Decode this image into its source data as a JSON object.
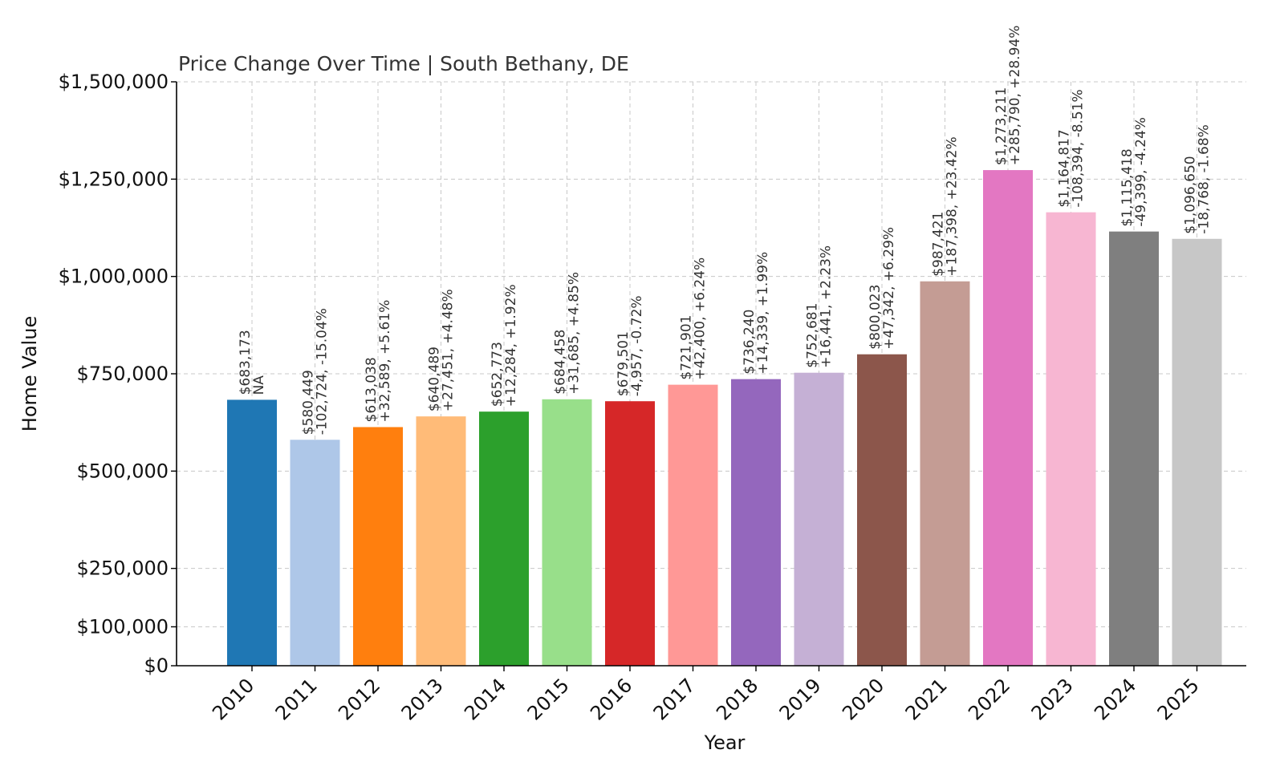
{
  "chart_data": {
    "type": "bar",
    "title": "Price Change Over Time | South Bethany, DE",
    "xlabel": "Year",
    "ylabel": "Home Value",
    "ylim": [
      0,
      1500000
    ],
    "yticks": [
      0,
      100000,
      250000,
      500000,
      750000,
      1000000,
      1250000,
      1500000
    ],
    "ytick_labels": [
      "$0",
      "$100,000",
      "$250,000",
      "$500,000",
      "$750,000",
      "$1,000,000",
      "$1,250,000",
      "$1,500,000"
    ],
    "grid": true,
    "categories": [
      "2010",
      "2011",
      "2012",
      "2013",
      "2014",
      "2015",
      "2016",
      "2017",
      "2018",
      "2019",
      "2020",
      "2021",
      "2022",
      "2023",
      "2024",
      "2025"
    ],
    "values": [
      683173,
      580449,
      613038,
      640489,
      652773,
      684458,
      679501,
      721901,
      736240,
      752681,
      800023,
      987421,
      1273211,
      1164817,
      1115418,
      1096650
    ],
    "labels": [
      [
        "$683,173",
        "NA"
      ],
      [
        "$580,449",
        "-102,724, -15.04%"
      ],
      [
        "$613,038",
        "+32,589, +5.61%"
      ],
      [
        "$640,489",
        "+27,451, +4.48%"
      ],
      [
        "$652,773",
        "+12,284, +1.92%"
      ],
      [
        "$684,458",
        "+31,685, +4.85%"
      ],
      [
        "$679,501",
        "-4,957, -0.72%"
      ],
      [
        "$721,901",
        "+42,400, +6.24%"
      ],
      [
        "$736,240",
        "+14,339, +1.99%"
      ],
      [
        "$752,681",
        "+16,441, +2.23%"
      ],
      [
        "$800,023",
        "+47,342, +6.29%"
      ],
      [
        "$987,421",
        "+187,398, +23.42%"
      ],
      [
        "$1,273,211",
        "+285,790, +28.94%"
      ],
      [
        "$1,164,817",
        "-108,394, -8.51%"
      ],
      [
        "$1,115,418",
        "-49,399, -4.24%"
      ],
      [
        "$1,096,650",
        "-18,768, -1.68%"
      ]
    ],
    "colors": [
      "#1f77b4",
      "#aec7e8",
      "#ff7f0e",
      "#ffbb78",
      "#2ca02c",
      "#98df8a",
      "#d62728",
      "#ff9896",
      "#9467bd",
      "#c5b0d5",
      "#8c564b",
      "#c49c94",
      "#e377c2",
      "#f7b6d2",
      "#7f7f7f",
      "#c7c7c7"
    ]
  }
}
